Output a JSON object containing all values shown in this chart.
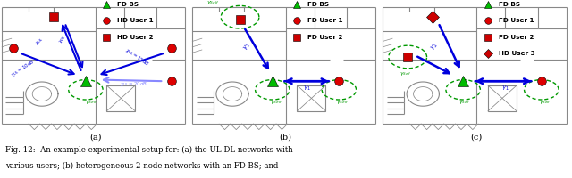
{
  "fig_width": 6.4,
  "fig_height": 2.0,
  "background_color": "#ffffff",
  "caption_line1": "Fig. 12:  An example experimental setup for: (a) the UL-DL networks with",
  "caption_line2": "various users; (b) heterogeneous 2-node networks with an FD BS; and",
  "subfig_labels": [
    "(a)",
    "(b)",
    "(c)"
  ],
  "legend_a": [
    {
      "label": "FD BS",
      "color": "#00bb00",
      "marker": "^"
    },
    {
      "label": "HD User 1",
      "color": "#dd0000",
      "marker": "o"
    },
    {
      "label": "HD User 2",
      "color": "#cc0000",
      "marker": "s"
    }
  ],
  "legend_b": [
    {
      "label": "FD BS",
      "color": "#00bb00",
      "marker": "^"
    },
    {
      "label": "FD User 1",
      "color": "#dd0000",
      "marker": "o"
    },
    {
      "label": "FD User 2",
      "color": "#cc0000",
      "marker": "s"
    }
  ],
  "legend_c": [
    {
      "label": "FD BS",
      "color": "#00bb00",
      "marker": "^"
    },
    {
      "label": "FD User 1",
      "color": "#dd0000",
      "marker": "o"
    },
    {
      "label": "FD User 2",
      "color": "#cc0000",
      "marker": "s"
    },
    {
      "label": "HD User 3",
      "color": "#cc0000",
      "marker": "D"
    }
  ],
  "wall_color": "#888888",
  "arrow_dark": "#0000dd",
  "arrow_light": "#8888ff",
  "self_color": "#009900"
}
